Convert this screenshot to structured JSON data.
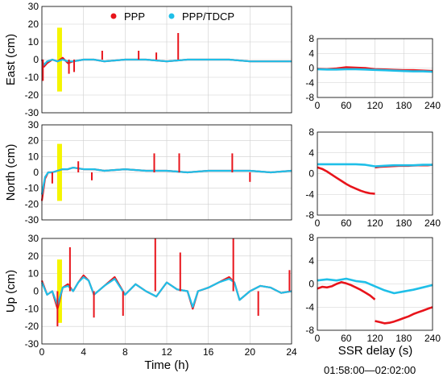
{
  "colors": {
    "ppp": "#e8141b",
    "tdcp": "#1fbfe8",
    "highlight": "#f5f500"
  },
  "legend": {
    "ppp": "PPP",
    "tdcp": "PPP/TDCP"
  },
  "timeseries_xlabel": "Time (h)",
  "delay_xlabel": "SSR delay (s)",
  "delay_window": "01:58:00—02:02:00",
  "chart_data": [
    {
      "type": "line",
      "panel": "left",
      "row": 0,
      "ylabel": "East (cm)",
      "xlim": [
        0,
        24
      ],
      "ylim": [
        -30,
        30
      ],
      "xticks": [
        0,
        4,
        8,
        12,
        16,
        20,
        24
      ],
      "yticks": [
        -30,
        -20,
        -10,
        0,
        10,
        20,
        30
      ],
      "highlight": {
        "x": 1.7,
        "y": [
          -18,
          18
        ]
      },
      "series": [
        {
          "name": "PPP",
          "x": [
            0,
            0.2,
            0.5,
            1,
            1.5,
            2,
            2.5,
            3,
            4,
            5,
            6,
            8,
            10,
            12,
            14,
            16,
            18,
            20,
            22,
            24
          ],
          "y": [
            0,
            -4,
            -2,
            0,
            -1,
            1,
            -2,
            -1,
            0,
            0,
            -1,
            0,
            0,
            -1,
            0,
            0,
            0,
            -1,
            -1,
            -1
          ]
        },
        {
          "name": "PPP/TDCP",
          "x": [
            0,
            0.2,
            0.5,
            1,
            1.5,
            2,
            2.5,
            3,
            4,
            5,
            6,
            8,
            10,
            12,
            14,
            16,
            18,
            20,
            22,
            24
          ],
          "y": [
            0,
            -3,
            -1,
            0,
            -1,
            0,
            -1,
            -1,
            0,
            0,
            -1,
            0,
            0,
            -1,
            0,
            0,
            0,
            -1,
            -1,
            -1
          ]
        }
      ],
      "spikes": [
        {
          "series": "PPP",
          "x": 13.1,
          "y": 15
        },
        {
          "series": "PPP",
          "x": 2.6,
          "y": -8
        },
        {
          "series": "PPP",
          "x": 3.1,
          "y": -7
        },
        {
          "series": "PPP",
          "x": 5.8,
          "y": 5
        },
        {
          "series": "PPP",
          "x": 9.3,
          "y": 5
        },
        {
          "series": "PPP",
          "x": 11.0,
          "y": 4
        },
        {
          "series": "PPP",
          "x": 0.1,
          "y": -12
        }
      ]
    },
    {
      "type": "line",
      "panel": "left",
      "row": 1,
      "ylabel": "North (cm)",
      "xlim": [
        0,
        24
      ],
      "ylim": [
        -30,
        30
      ],
      "xticks": [
        0,
        4,
        8,
        12,
        16,
        20,
        24
      ],
      "yticks": [
        -30,
        -20,
        -10,
        0,
        10,
        20,
        30
      ],
      "highlight": {
        "x": 1.7,
        "y": [
          -18,
          18
        ]
      },
      "series": [
        {
          "name": "PPP",
          "x": [
            0,
            0.3,
            0.6,
            1,
            1.5,
            2,
            2.5,
            3,
            4,
            5,
            6,
            8,
            10,
            12,
            14,
            16,
            18,
            20,
            22,
            24
          ],
          "y": [
            -18,
            -4,
            0,
            0,
            1,
            2,
            2,
            3,
            2,
            2,
            1,
            2,
            1,
            1,
            0,
            1,
            1,
            1,
            0,
            1
          ]
        },
        {
          "name": "PPP/TDCP",
          "x": [
            0,
            0.3,
            0.6,
            1,
            1.5,
            2,
            2.5,
            3,
            4,
            5,
            6,
            8,
            10,
            12,
            14,
            16,
            18,
            20,
            22,
            24
          ],
          "y": [
            -14,
            -3,
            0,
            0,
            1,
            2,
            2,
            3,
            2,
            2,
            1,
            2,
            1,
            1,
            0,
            1,
            1,
            1,
            0,
            1
          ]
        }
      ],
      "spikes": [
        {
          "series": "PPP",
          "x": 10.8,
          "y": 12
        },
        {
          "series": "PPP",
          "x": 13.2,
          "y": 12
        },
        {
          "series": "PPP",
          "x": 18.3,
          "y": 12
        },
        {
          "series": "PPP",
          "x": 3.5,
          "y": 7
        },
        {
          "series": "PPP",
          "x": 1.0,
          "y": -7
        },
        {
          "series": "PPP",
          "x": 20.0,
          "y": -6
        },
        {
          "series": "PPP",
          "x": 4.8,
          "y": -5
        }
      ]
    },
    {
      "type": "line",
      "panel": "left",
      "row": 2,
      "ylabel": "Up (cm)",
      "xlim": [
        0,
        24
      ],
      "ylim": [
        -30,
        30
      ],
      "xticks": [
        0,
        4,
        8,
        12,
        16,
        20,
        24
      ],
      "xticklabels": [
        "0",
        "4",
        "8",
        "12",
        "16",
        "20",
        "24"
      ],
      "yticks": [
        -30,
        -20,
        -10,
        0,
        10,
        20,
        30
      ],
      "highlight": {
        "x": 1.7,
        "y": [
          -18,
          18
        ]
      },
      "series": [
        {
          "name": "PPP",
          "x": [
            0,
            0.5,
            1,
            1.5,
            2,
            2.5,
            3,
            3.5,
            4,
            4.5,
            5,
            6,
            7,
            8,
            9,
            10,
            11,
            12,
            13,
            14,
            14.5,
            15,
            16,
            17,
            18,
            18.5,
            19,
            20,
            21,
            22,
            23,
            24
          ],
          "y": [
            6,
            -2,
            0,
            -10,
            2,
            4,
            0,
            5,
            9,
            6,
            -2,
            3,
            8,
            -2,
            4,
            0,
            -3,
            5,
            1,
            0,
            -10,
            0,
            2,
            5,
            8,
            5,
            -5,
            0,
            3,
            2,
            -1,
            0
          ]
        },
        {
          "name": "PPP/TDCP",
          "x": [
            0,
            0.5,
            1,
            1.5,
            2,
            2.5,
            3,
            3.5,
            4,
            4.5,
            5,
            6,
            7,
            8,
            9,
            10,
            11,
            12,
            13,
            14,
            14.5,
            15,
            16,
            17,
            18,
            18.5,
            19,
            20,
            21,
            22,
            23,
            24
          ],
          "y": [
            5,
            -2,
            0,
            -8,
            2,
            3,
            0,
            5,
            8,
            6,
            -2,
            3,
            7,
            -2,
            4,
            0,
            -3,
            5,
            1,
            0,
            -9,
            0,
            2,
            5,
            7,
            5,
            -5,
            0,
            3,
            2,
            -1,
            0
          ]
        }
      ],
      "spikes": [
        {
          "series": "PPP",
          "x": 10.9,
          "y": 30
        },
        {
          "series": "PPP",
          "x": 18.4,
          "y": 30
        },
        {
          "series": "PPP",
          "x": 2.7,
          "y": 25
        },
        {
          "series": "PPP",
          "x": 13.3,
          "y": 22
        },
        {
          "series": "PPP",
          "x": 1.5,
          "y": -20
        },
        {
          "series": "PPP",
          "x": 5.0,
          "y": -15
        },
        {
          "series": "PPP",
          "x": 7.8,
          "y": -14
        },
        {
          "series": "PPP",
          "x": 20.8,
          "y": -14
        },
        {
          "series": "PPP",
          "x": 23.8,
          "y": 12
        }
      ]
    },
    {
      "type": "line",
      "panel": "right",
      "row": 0,
      "xlim": [
        0,
        240
      ],
      "ylim": [
        -8,
        8
      ],
      "xticks": [
        0,
        60,
        120,
        180,
        240
      ],
      "yticks": [
        -8,
        -4,
        0,
        4,
        8
      ],
      "yticklabels": [
        "-8",
        "-4",
        "0",
        "4",
        "8"
      ],
      "series": [
        {
          "name": "PPP",
          "x": [
            0,
            20,
            40,
            60,
            80,
            100,
            120,
            140,
            160,
            180,
            200,
            220,
            240
          ],
          "y": [
            -0.2,
            -0.3,
            -0.1,
            0.2,
            0.1,
            0.0,
            -0.3,
            -0.4,
            -0.5,
            -0.6,
            -0.6,
            -0.7,
            -0.8
          ]
        },
        {
          "name": "PPP/TDCP",
          "x": [
            0,
            20,
            40,
            60,
            80,
            100,
            120,
            140,
            160,
            180,
            200,
            220,
            240
          ],
          "y": [
            -0.3,
            -0.4,
            -0.4,
            -0.3,
            -0.3,
            -0.4,
            -0.5,
            -0.6,
            -0.7,
            -0.8,
            -0.9,
            -0.9,
            -1.0
          ]
        }
      ]
    },
    {
      "type": "line",
      "panel": "right",
      "row": 1,
      "xlim": [
        0,
        240
      ],
      "ylim": [
        -8,
        8
      ],
      "xticks": [
        0,
        60,
        120,
        180,
        240
      ],
      "yticks": [
        -8,
        -4,
        0,
        4,
        8
      ],
      "yticklabels": [
        "-8",
        "-4",
        "0",
        "4",
        "8"
      ],
      "series": [
        {
          "name": "PPP",
          "x": [
            0,
            10,
            20,
            30,
            40,
            50,
            60,
            70,
            80,
            90,
            100,
            110,
            120
          ],
          "y": [
            1.2,
            0.9,
            0.4,
            -0.2,
            -0.8,
            -1.4,
            -2.0,
            -2.5,
            -2.9,
            -3.3,
            -3.6,
            -3.8,
            -3.9
          ]
        },
        {
          "name": "PPP",
          "x": [
            120,
            130,
            150,
            170,
            190,
            210,
            230,
            240
          ],
          "y": [
            1.2,
            1.3,
            1.4,
            1.5,
            1.5,
            1.6,
            1.6,
            1.7
          ]
        },
        {
          "name": "PPP/TDCP",
          "x": [
            0,
            20,
            40,
            60,
            80,
            100,
            120,
            140,
            160,
            180,
            200,
            220,
            240
          ],
          "y": [
            1.8,
            1.8,
            1.8,
            1.8,
            1.8,
            1.7,
            1.4,
            1.5,
            1.6,
            1.6,
            1.6,
            1.7,
            1.7
          ]
        }
      ]
    },
    {
      "type": "line",
      "panel": "right",
      "row": 2,
      "xlim": [
        0,
        240
      ],
      "ylim": [
        -8,
        8
      ],
      "xticks": [
        0,
        60,
        120,
        180,
        240
      ],
      "yticks": [
        -8,
        -4,
        0,
        4,
        8
      ],
      "yticklabels": [
        "-8",
        "-4",
        "0",
        "4",
        "8"
      ],
      "series": [
        {
          "name": "PPP",
          "x": [
            0,
            10,
            20,
            30,
            40,
            50,
            60,
            70,
            80,
            90,
            100,
            110,
            120
          ],
          "y": [
            -0.8,
            -0.5,
            -0.6,
            -0.4,
            0.0,
            0.3,
            0.1,
            -0.2,
            -0.6,
            -1.0,
            -1.5,
            -2.0,
            -2.7
          ]
        },
        {
          "name": "PPP",
          "x": [
            120,
            130,
            140,
            150,
            160,
            170,
            180,
            190,
            200,
            210,
            220,
            230,
            240
          ],
          "y": [
            -6.4,
            -6.6,
            -6.8,
            -6.7,
            -6.5,
            -6.2,
            -5.9,
            -5.6,
            -5.2,
            -4.9,
            -4.6,
            -4.3,
            -4.0
          ]
        },
        {
          "name": "PPP/TDCP",
          "x": [
            0,
            20,
            40,
            60,
            80,
            100,
            120,
            140,
            160,
            180,
            200,
            220,
            240
          ],
          "y": [
            0.6,
            0.8,
            0.6,
            0.9,
            0.5,
            0.3,
            -0.4,
            -1.1,
            -1.6,
            -1.3,
            -1.0,
            -0.6,
            -0.2
          ]
        }
      ]
    }
  ]
}
